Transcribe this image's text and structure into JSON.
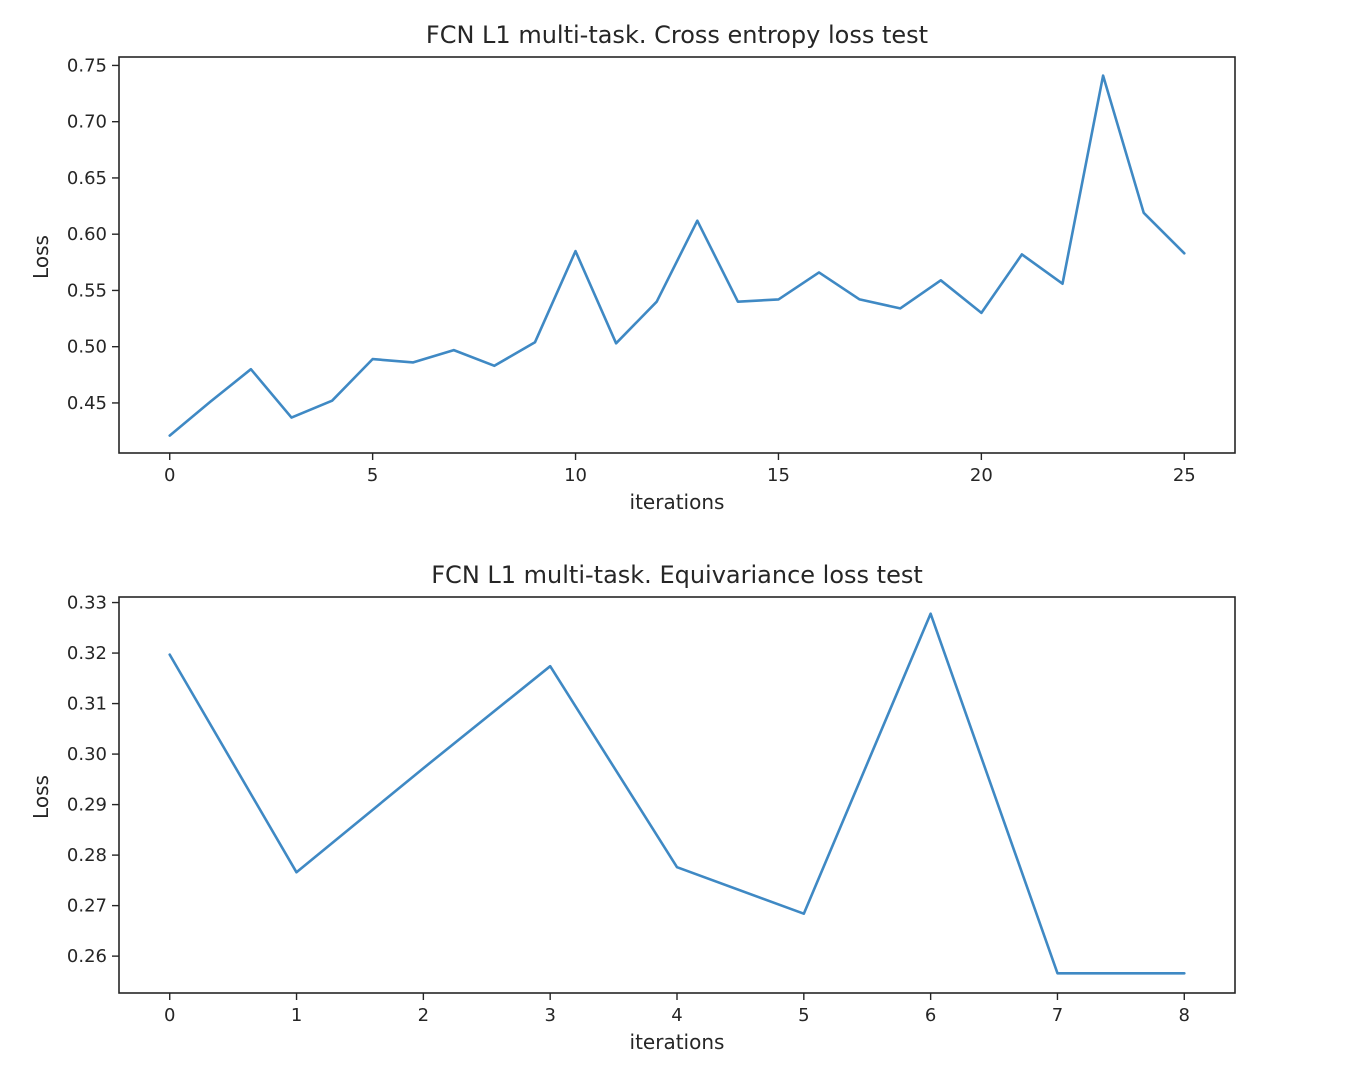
{
  "chart_data": [
    {
      "type": "line",
      "title": "FCN L1 multi-task. Cross entropy loss test",
      "xlabel": "iterations",
      "ylabel": "Loss",
      "xlim": [
        -1.25,
        26.25
      ],
      "ylim": [
        0.4055,
        0.7575
      ],
      "xticks": [
        0,
        5,
        10,
        15,
        20,
        25
      ],
      "xtick_labels": [
        "0",
        "5",
        "10",
        "15",
        "20",
        "25"
      ],
      "yticks": [
        0.45,
        0.5,
        0.55,
        0.6,
        0.65,
        0.7,
        0.75
      ],
      "ytick_labels": [
        "0.45",
        "0.50",
        "0.55",
        "0.60",
        "0.65",
        "0.70",
        "0.75"
      ],
      "grid": false,
      "color": "#3f89c4",
      "x": [
        0,
        1,
        2,
        3,
        4,
        5,
        6,
        7,
        8,
        9,
        10,
        11,
        12,
        13,
        14,
        15,
        16,
        17,
        18,
        19,
        20,
        21,
        22,
        23,
        24,
        25
      ],
      "y": [
        0.421,
        0.451,
        0.48,
        0.437,
        0.452,
        0.489,
        0.486,
        0.497,
        0.483,
        0.504,
        0.585,
        0.503,
        0.54,
        0.612,
        0.54,
        0.542,
        0.566,
        0.542,
        0.534,
        0.559,
        0.53,
        0.582,
        0.556,
        0.741,
        0.619,
        0.583
      ]
    },
    {
      "type": "line",
      "title": "FCN L1 multi-task. Equivariance loss test",
      "xlabel": "iterations",
      "ylabel": "Loss",
      "xlim": [
        -0.4,
        8.4
      ],
      "ylim": [
        0.2527,
        0.3311
      ],
      "xticks": [
        0,
        1,
        2,
        3,
        4,
        5,
        6,
        7,
        8
      ],
      "xtick_labels": [
        "0",
        "1",
        "2",
        "3",
        "4",
        "5",
        "6",
        "7",
        "8"
      ],
      "yticks": [
        0.26,
        0.27,
        0.28,
        0.29,
        0.3,
        0.31,
        0.32,
        0.33
      ],
      "ytick_labels": [
        "0.26",
        "0.27",
        "0.28",
        "0.29",
        "0.30",
        "0.31",
        "0.32",
        "0.33"
      ],
      "grid": false,
      "color": "#3f89c4",
      "x": [
        0,
        1,
        2,
        3,
        4,
        5,
        6,
        7,
        8
      ],
      "y": [
        0.3197,
        0.2766,
        0.2972,
        0.3174,
        0.2776,
        0.2684,
        0.3278,
        0.2566,
        0.2566
      ]
    }
  ]
}
